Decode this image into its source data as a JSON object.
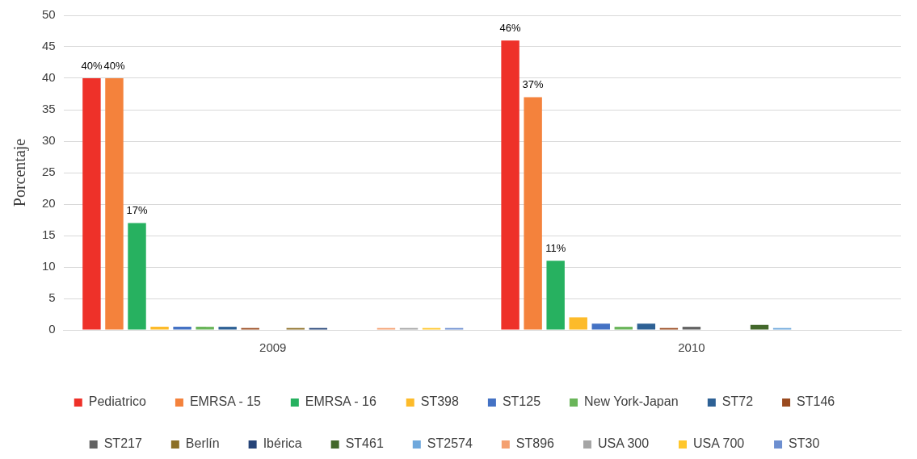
{
  "chart_data": {
    "type": "bar",
    "ylabel": "Porcentaje",
    "categories": [
      "2009",
      "2010"
    ],
    "ylim": [
      0,
      50
    ],
    "yticks": [
      0,
      5,
      10,
      15,
      20,
      25,
      30,
      35,
      40,
      45,
      50
    ],
    "grid": "y",
    "legend": "bottom",
    "series": [
      {
        "name": "Pediatrico",
        "color": "#ee3129",
        "values": [
          40,
          46
        ],
        "value_labels": [
          "40%",
          "46%"
        ]
      },
      {
        "name": "EMRSA - 15",
        "color": "#f4823c",
        "values": [
          40,
          37
        ],
        "value_labels": [
          "40%",
          "37%"
        ]
      },
      {
        "name": "EMRSA - 16",
        "color": "#27b160",
        "values": [
          17,
          11
        ],
        "value_labels": [
          "17%",
          "11%"
        ]
      },
      {
        "name": "ST398",
        "color": "#fdbb2a",
        "values": [
          0.5,
          2
        ]
      },
      {
        "name": "ST125",
        "color": "#4472c4",
        "values": [
          0.5,
          1
        ]
      },
      {
        "name": "New York-Japan",
        "color": "#6ab55a",
        "values": [
          0.5,
          0.5
        ]
      },
      {
        "name": "ST72",
        "color": "#2e6195",
        "values": [
          0.5,
          1
        ]
      },
      {
        "name": "ST146",
        "color": "#9a4a1f",
        "values": [
          0.3,
          0.3
        ]
      },
      {
        "name": "ST217",
        "color": "#636363",
        "values": [
          0,
          0.5
        ]
      },
      {
        "name": "Berlín",
        "color": "#8c6f26",
        "values": [
          0.3,
          0
        ]
      },
      {
        "name": "Ibérica",
        "color": "#264478",
        "values": [
          0.3,
          0
        ]
      },
      {
        "name": "ST461",
        "color": "#43682b",
        "values": [
          0,
          0.8
        ]
      },
      {
        "name": "ST2574",
        "color": "#6fa8dc",
        "values": [
          0,
          0.3
        ]
      },
      {
        "name": "ST896",
        "color": "#f4a070",
        "values": [
          0.3,
          0
        ]
      },
      {
        "name": "USA 300",
        "color": "#a5a5a5",
        "values": [
          0.3,
          0
        ]
      },
      {
        "name": "USA 700",
        "color": "#ffc72c",
        "values": [
          0.3,
          0
        ]
      },
      {
        "name": "ST30",
        "color": "#6d8fd0",
        "values": [
          0.3,
          0
        ]
      }
    ]
  }
}
